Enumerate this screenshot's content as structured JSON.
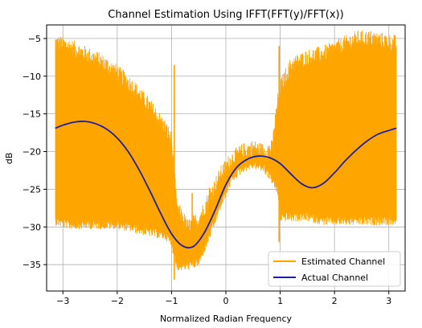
{
  "chart_data": {
    "type": "line",
    "title": "Channel Estimation Using IFFT(FFT(y)/FFT(x))",
    "xlabel": "Normalized Radian Frequency",
    "ylabel": "dB",
    "xlim": [
      -3.3,
      3.3
    ],
    "ylim": [
      -38.5,
      -3.2
    ],
    "xticks": [
      -3,
      -2,
      -1,
      0,
      1,
      2,
      3
    ],
    "yticks": [
      -35,
      -30,
      -25,
      -20,
      -15,
      -10,
      -5
    ],
    "xtick_labels": [
      "−3",
      "−2",
      "−1",
      "0",
      "1",
      "2",
      "3"
    ],
    "ytick_labels": [
      "−35",
      "−30",
      "−25",
      "−20",
      "−15",
      "−10",
      "−5"
    ],
    "grid": true,
    "legend_position": "lower-right",
    "series": [
      {
        "name": "Estimated Channel",
        "color": "#ffa500",
        "style": "noisy-envelope",
        "x": [
          -3.14,
          -2.9,
          -2.6,
          -2.3,
          -2.0,
          -1.7,
          -1.4,
          -1.1,
          -1.0,
          -0.9,
          -0.7,
          -0.5,
          -0.3,
          -0.1,
          0.1,
          0.3,
          0.5,
          0.7,
          0.85,
          0.95,
          1.0,
          1.2,
          1.5,
          1.8,
          2.1,
          2.4,
          2.7,
          3.0,
          3.14
        ],
        "upper": [
          -6.0,
          -6.5,
          -7.5,
          -8.5,
          -10.0,
          -12.0,
          -14.5,
          -17.5,
          -19.0,
          -28.0,
          -30.5,
          -29.5,
          -26.5,
          -23.5,
          -21.5,
          -20.5,
          -20.0,
          -20.5,
          -20.0,
          -14.0,
          -12.0,
          -9.0,
          -8.0,
          -7.5,
          -6.5,
          -5.5,
          -5.5,
          -6.0,
          -6.2
        ],
        "lower": [
          -29.0,
          -29.5,
          -29.5,
          -29.5,
          -29.5,
          -30.0,
          -30.5,
          -31.0,
          -32.0,
          -35.0,
          -35.0,
          -34.5,
          -31.0,
          -27.0,
          -23.5,
          -22.0,
          -21.5,
          -22.0,
          -23.5,
          -25.0,
          -28.5,
          -28.5,
          -28.5,
          -29.0,
          -29.0,
          -29.0,
          -29.0,
          -29.0,
          -29.0
        ],
        "spikes": [
          {
            "x": -0.95,
            "y_min": -37.0,
            "y_max": -8.5
          },
          {
            "x": 0.98,
            "y_min": -32.0,
            "y_max": -6.0
          },
          {
            "x": -0.62,
            "y_min": -31.0,
            "y_max": -25.5
          },
          {
            "x": -0.3,
            "y_min": -30.0,
            "y_max": -24.8
          },
          {
            "x": 3.1,
            "y_min": -12.0,
            "y_max": -4.5
          }
        ]
      },
      {
        "name": "Actual Channel",
        "color": "#1f1fa0",
        "x": [
          -3.14,
          -3.0,
          -2.8,
          -2.6,
          -2.4,
          -2.2,
          -2.0,
          -1.8,
          -1.6,
          -1.4,
          -1.2,
          -1.0,
          -0.8,
          -0.6,
          -0.4,
          -0.2,
          0.0,
          0.2,
          0.4,
          0.6,
          0.8,
          1.0,
          1.2,
          1.4,
          1.6,
          1.8,
          2.0,
          2.2,
          2.4,
          2.6,
          2.8,
          3.0,
          3.14
        ],
        "y": [
          -16.9,
          -16.5,
          -16.1,
          -16.0,
          -16.3,
          -17.0,
          -18.2,
          -20.0,
          -22.4,
          -25.2,
          -28.2,
          -30.9,
          -32.5,
          -32.6,
          -30.8,
          -27.8,
          -24.4,
          -22.1,
          -21.0,
          -20.6,
          -20.8,
          -21.6,
          -23.0,
          -24.3,
          -24.8,
          -24.2,
          -22.8,
          -21.2,
          -19.8,
          -18.6,
          -17.7,
          -17.2,
          -16.9
        ]
      }
    ]
  }
}
